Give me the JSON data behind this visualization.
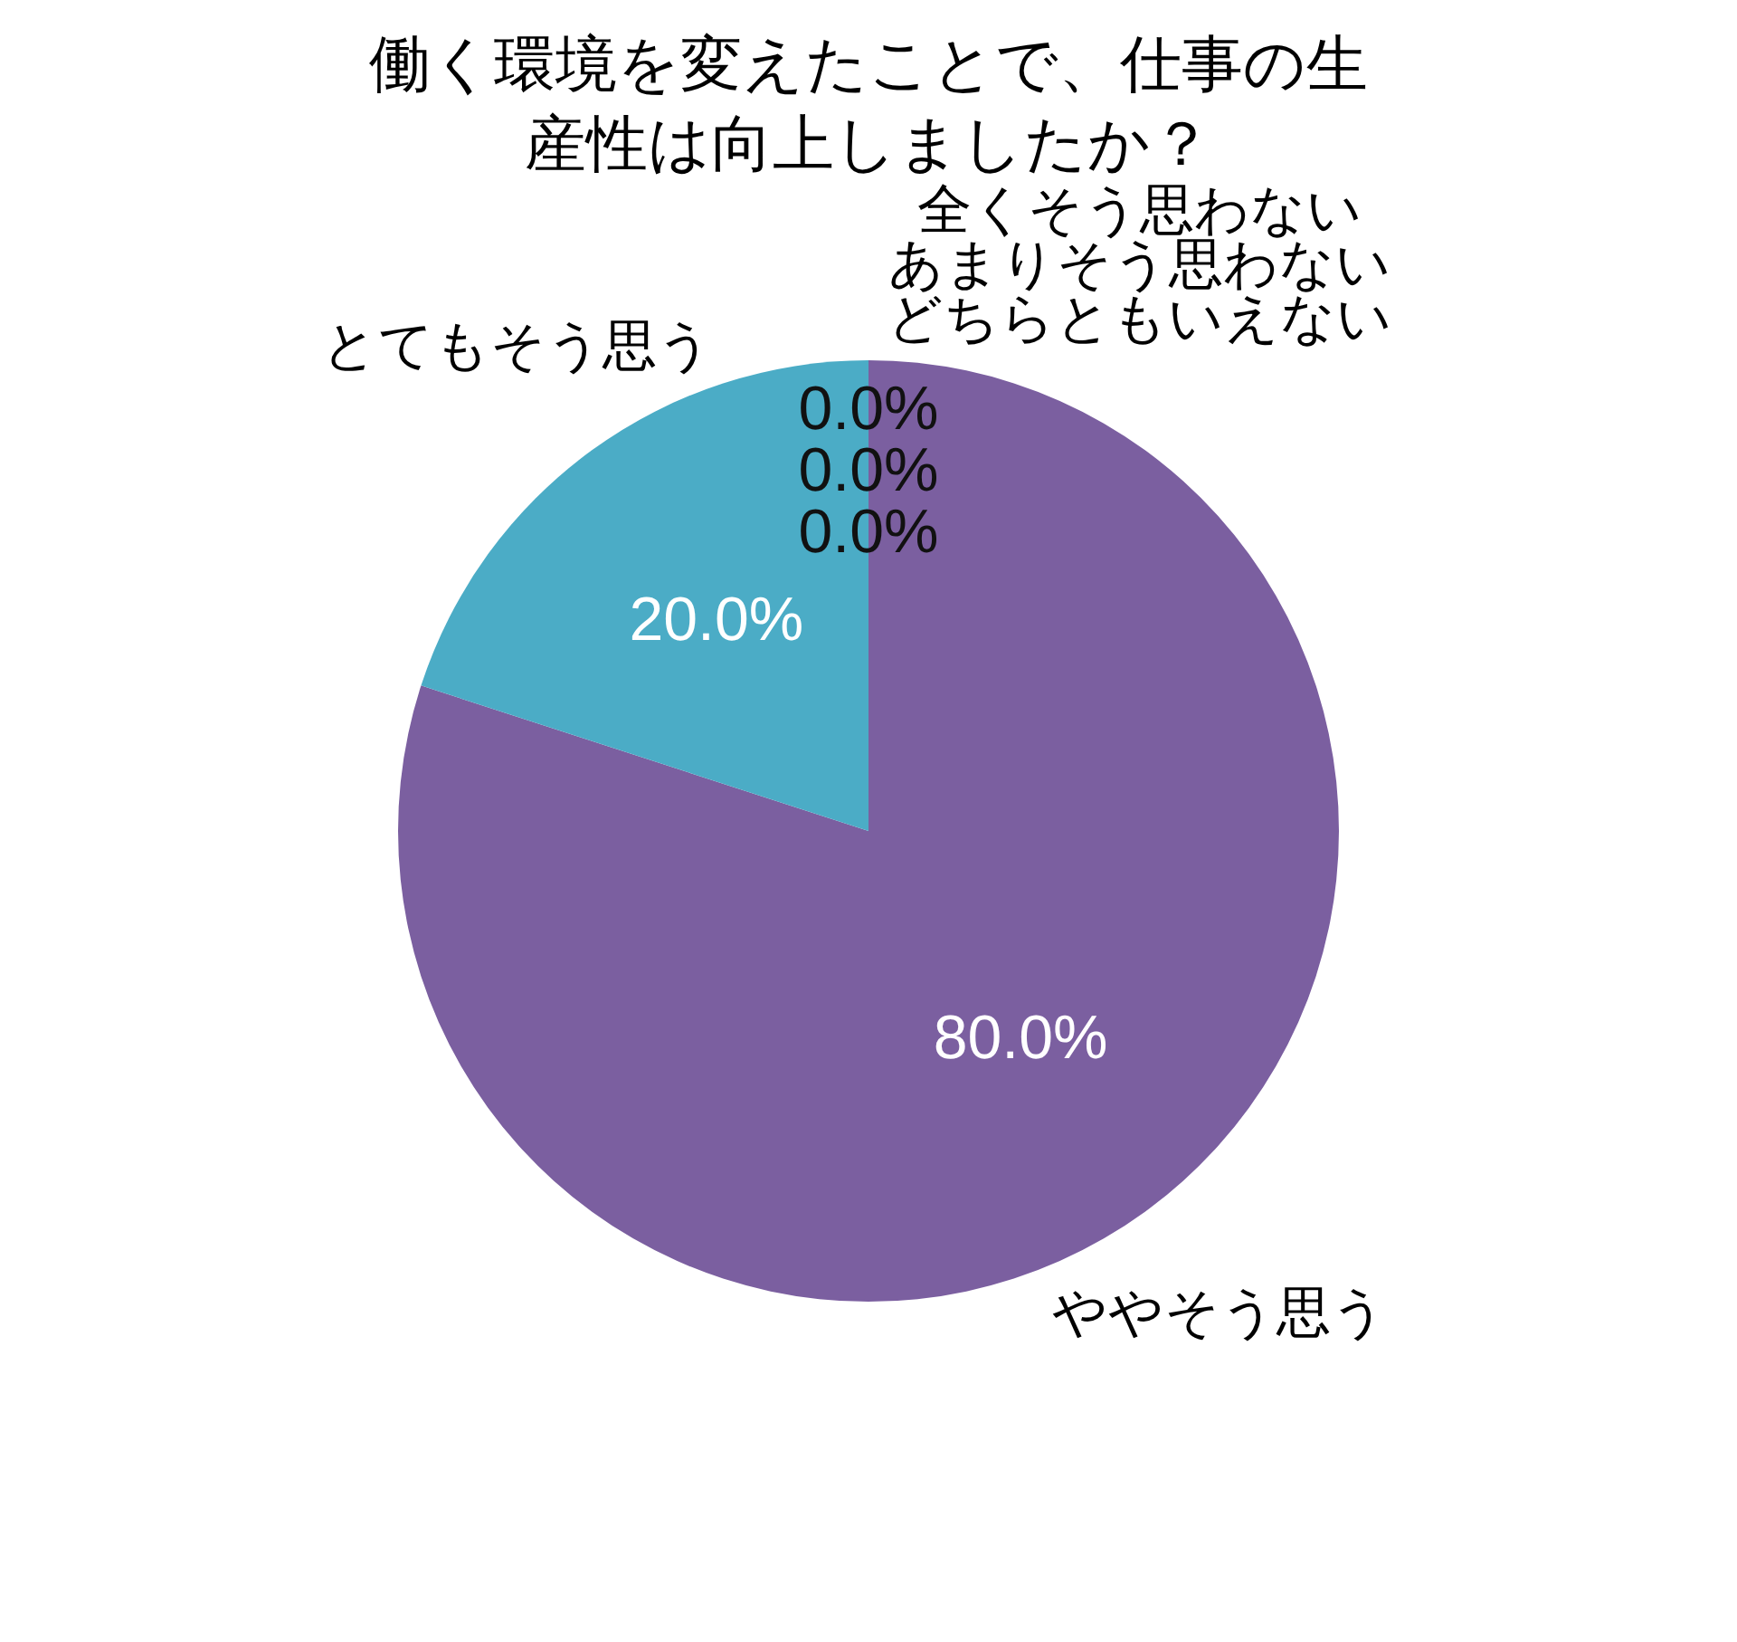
{
  "chart_data": {
    "type": "pie",
    "title": "働く環境を変えたことで、仕事の生産性は向上しましたか？",
    "categories": [
      "全くそう思わない",
      "あまりそう思わない",
      "どちらともいえない",
      "ややそう思う",
      "とてもそう思う"
    ],
    "values": [
      0,
      0,
      0,
      80,
      20
    ],
    "value_labels": [
      "0.0%",
      "0.0%",
      "0.0%",
      "80.0%",
      "20.0%"
    ],
    "colors": [
      "#4f81bd",
      "#c0504d",
      "#9bbb59",
      "#7b5fa0",
      "#4bacc6"
    ]
  }
}
